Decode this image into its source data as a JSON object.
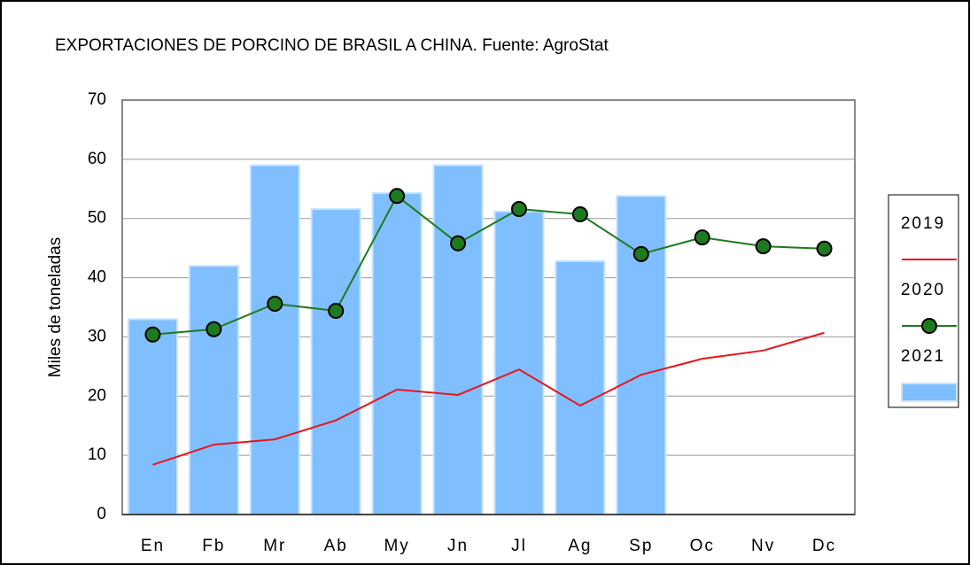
{
  "chart_data": {
    "type": "bar",
    "title": "EXPORTACIONES DE PORCINO DE BRASIL A CHINA. Fuente: AgroStat",
    "y_label": "Miles de toneladas",
    "categories": [
      "En",
      "Fb",
      "Mr",
      "Ab",
      "My",
      "Jn",
      "Jl",
      "Ag",
      "Sp",
      "Oc",
      "Nv",
      "Dc"
    ],
    "series": [
      {
        "name": "2019",
        "type": "line",
        "color": "#e8141c",
        "marker": false,
        "values": [
          8.4,
          11.8,
          12.7,
          15.9,
          21.1,
          20.2,
          24.5,
          18.4,
          23.6,
          26.3,
          27.7,
          30.7
        ]
      },
      {
        "name": "2020",
        "type": "line",
        "color": "#1e7a1e",
        "marker": true,
        "values": [
          30.4,
          31.3,
          35.6,
          34.4,
          53.8,
          45.8,
          51.6,
          50.7,
          44.0,
          46.8,
          45.3,
          44.9
        ]
      },
      {
        "name": "2021",
        "type": "bar",
        "color": "#80bfff",
        "values": [
          33,
          42,
          59,
          51.6,
          54.3,
          59,
          51.2,
          42.8,
          53.8,
          null,
          null,
          null
        ]
      }
    ],
    "ylim": [
      0,
      70
    ],
    "yticks": [
      0,
      10,
      20,
      30,
      40,
      50,
      60,
      70
    ],
    "grid": true,
    "legend": "right"
  }
}
